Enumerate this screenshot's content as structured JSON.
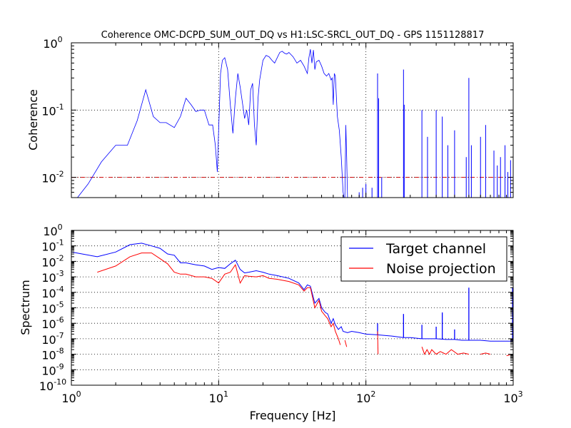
{
  "chart_data": [
    {
      "type": "line",
      "title": "Coherence OMC-DCPD_SUM_OUT_DQ vs H1:LSC-SRCL_OUT_DQ - GPS 1151128817",
      "xlabel": "",
      "ylabel": "Coherence",
      "xscale": "log",
      "yscale": "log",
      "xlim": [
        1,
        1000
      ],
      "ylim": [
        0.005,
        1
      ],
      "grid": true,
      "threshold": {
        "y": 0.01,
        "color": "#cc0000"
      },
      "yticks": [
        {
          "value": 0.01,
          "base": "10",
          "exp": "-2"
        },
        {
          "value": 0.1,
          "base": "10",
          "exp": "-1"
        },
        {
          "value": 1,
          "base": "10",
          "exp": "0"
        }
      ],
      "series": [
        {
          "color": "#0000ff",
          "x": [
            1.1,
            1.3,
            1.6,
            2.0,
            2.4,
            2.8,
            3.2,
            3.6,
            4.0,
            4.4,
            5.0,
            5.5,
            6.0,
            6.5,
            7.0,
            7.5,
            8.0,
            8.6,
            9.1,
            9.5,
            9.8,
            10.0,
            10.3,
            10.6,
            11.0,
            11.5,
            12.0,
            12.5,
            13.0,
            13.5,
            14.0,
            14.5,
            15.0,
            15.5,
            16.0,
            16.5,
            17.0,
            17.5,
            18.0,
            18.5,
            19.0,
            20.0,
            21.0,
            22.0,
            23.0,
            24.0,
            25.0,
            26.0,
            27.0,
            28.0,
            29.0,
            30.0,
            32.0,
            34.0,
            36.0,
            38.0,
            40.0,
            41.0,
            42.0,
            43.0,
            44.0,
            45.0,
            46.0,
            48.0,
            50.0,
            52.0,
            54.0,
            56.0,
            58.0,
            59.0,
            60.0,
            61.0,
            62.0,
            64.0,
            66.0,
            68.0,
            70.0,
            71.0,
            72.0,
            73.0,
            74.0,
            75.0
          ],
          "y": [
            0.005,
            0.008,
            0.017,
            0.03,
            0.03,
            0.07,
            0.2,
            0.08,
            0.065,
            0.065,
            0.055,
            0.08,
            0.15,
            0.12,
            0.095,
            0.1,
            0.1,
            0.06,
            0.06,
            0.03,
            0.012,
            0.05,
            0.35,
            0.55,
            0.6,
            0.4,
            0.12,
            0.045,
            0.15,
            0.35,
            0.22,
            0.13,
            0.075,
            0.1,
            0.06,
            0.2,
            0.25,
            0.06,
            0.03,
            0.15,
            0.28,
            0.55,
            0.65,
            0.62,
            0.55,
            0.5,
            0.6,
            0.72,
            0.75,
            0.7,
            0.68,
            0.72,
            0.62,
            0.5,
            0.55,
            0.45,
            0.35,
            0.6,
            0.8,
            0.5,
            0.78,
            0.4,
            0.52,
            0.55,
            0.45,
            0.35,
            0.32,
            0.35,
            0.28,
            0.3,
            0.12,
            0.35,
            0.32,
            0.08,
            0.05,
            0.02,
            0.006,
            0.005,
            0.005,
            0.06,
            0.02,
            0.005
          ]
        }
      ],
      "spikes": [
        {
          "x": 90,
          "y": 0.006
        },
        {
          "x": 95,
          "y": 0.007
        },
        {
          "x": 100,
          "y": 0.008
        },
        {
          "x": 110,
          "y": 0.007
        },
        {
          "x": 120,
          "y": 0.35
        },
        {
          "x": 122,
          "y": 0.15
        },
        {
          "x": 128,
          "y": 0.01
        },
        {
          "x": 180,
          "y": 0.4
        },
        {
          "x": 182,
          "y": 0.12
        },
        {
          "x": 240,
          "y": 0.1
        },
        {
          "x": 262,
          "y": 0.04
        },
        {
          "x": 300,
          "y": 0.1
        },
        {
          "x": 330,
          "y": 0.08
        },
        {
          "x": 360,
          "y": 0.03
        },
        {
          "x": 400,
          "y": 0.05
        },
        {
          "x": 480,
          "y": 0.02
        },
        {
          "x": 500,
          "y": 0.3
        },
        {
          "x": 520,
          "y": 0.03
        },
        {
          "x": 600,
          "y": 0.04
        },
        {
          "x": 650,
          "y": 0.06
        },
        {
          "x": 740,
          "y": 0.025
        },
        {
          "x": 780,
          "y": 0.015
        },
        {
          "x": 820,
          "y": 0.02
        },
        {
          "x": 880,
          "y": 0.03
        },
        {
          "x": 920,
          "y": 0.012
        },
        {
          "x": 960,
          "y": 0.018
        }
      ]
    },
    {
      "type": "line",
      "title": "",
      "xlabel": "Frequency [Hz]",
      "ylabel": "Spectrum",
      "xscale": "log",
      "yscale": "log",
      "xlim": [
        1,
        1000
      ],
      "ylim": [
        1e-10,
        1
      ],
      "grid": true,
      "legend": "top-right",
      "xticks": [
        {
          "value": 1,
          "base": "10",
          "exp": "0"
        },
        {
          "value": 10,
          "base": "10",
          "exp": "1"
        },
        {
          "value": 100,
          "base": "10",
          "exp": "2"
        },
        {
          "value": 1000,
          "base": "10",
          "exp": "3"
        }
      ],
      "yticks": [
        {
          "value": 1e-10,
          "base": "10",
          "exp": "-10"
        },
        {
          "value": 1e-09,
          "base": "10",
          "exp": "-9"
        },
        {
          "value": 1e-08,
          "base": "10",
          "exp": "-8"
        },
        {
          "value": 1e-07,
          "base": "10",
          "exp": "-7"
        },
        {
          "value": 1e-06,
          "base": "10",
          "exp": "-6"
        },
        {
          "value": 1e-05,
          "base": "10",
          "exp": "-5"
        },
        {
          "value": 0.0001,
          "base": "10",
          "exp": "-4"
        },
        {
          "value": 0.001,
          "base": "10",
          "exp": "-3"
        },
        {
          "value": 0.01,
          "base": "10",
          "exp": "-2"
        },
        {
          "value": 0.1,
          "base": "10",
          "exp": "-1"
        },
        {
          "value": 1,
          "base": "10",
          "exp": "0"
        }
      ],
      "series": [
        {
          "name": "Target channel",
          "color": "#0000ff",
          "x": [
            1.0,
            1.5,
            2.0,
            2.5,
            3.0,
            3.5,
            4.0,
            4.5,
            5.0,
            5.5,
            6.0,
            7.0,
            8.0,
            9.0,
            10.0,
            11.0,
            12.0,
            13.0,
            14.0,
            15.0,
            16.0,
            18.0,
            20.0,
            22.0,
            25.0,
            30.0,
            35.0,
            38.0,
            40.0,
            42.0,
            45.0,
            48.0,
            50.0,
            53.0,
            55.0,
            58.0,
            60.0,
            62.0,
            65.0,
            68.0,
            70.0,
            75.0,
            80.0,
            90.0,
            100.0,
            120.0,
            150.0,
            180.0,
            200.0,
            240.0,
            300.0,
            350.0,
            400.0,
            450.0,
            490.0,
            510.0,
            600.0,
            700.0,
            800.0,
            900.0,
            990.0
          ],
          "y": [
            0.04,
            0.02,
            0.04,
            0.12,
            0.15,
            0.1,
            0.07,
            0.03,
            0.025,
            0.008,
            0.008,
            0.006,
            0.005,
            0.003,
            0.004,
            0.0035,
            0.007,
            0.012,
            0.003,
            0.0018,
            0.002,
            0.0025,
            0.002,
            0.0015,
            0.0012,
            0.0008,
            0.0004,
            0.00015,
            0.0003,
            0.00025,
            2e-05,
            4e-05,
            1e-05,
            5e-06,
            4e-06,
            1e-06,
            2e-06,
            8e-07,
            4e-07,
            6e-07,
            3e-07,
            2.5e-07,
            3e-07,
            2.5e-07,
            2e-07,
            1.8e-07,
            1.5e-07,
            1.2e-07,
            1.2e-07,
            1e-07,
            1e-07,
            9e-08,
            9e-08,
            8e-08,
            8e-08,
            8e-08,
            8e-08,
            7e-08,
            7e-08,
            7e-08,
            7e-08
          ]
        },
        {
          "name": "Noise projection",
          "color": "#ff0000",
          "x": [
            1.5,
            2.0,
            2.5,
            3.0,
            3.5,
            4.0,
            4.5,
            5.0,
            5.5,
            6.0,
            7.0,
            8.0,
            9.0,
            10.0,
            11.0,
            12.0,
            13.0,
            14.0,
            15.0,
            16.0,
            18.0,
            20.0,
            22.0,
            25.0,
            30.0,
            35.0,
            38.0,
            40.0,
            42.0,
            45.0,
            48.0,
            50.0,
            53.0,
            55.0,
            58.0,
            60.0,
            62.0,
            65.0,
            67.0
          ],
          "y": [
            0.002,
            0.005,
            0.02,
            0.035,
            0.035,
            0.015,
            0.007,
            0.002,
            0.0015,
            0.0015,
            0.001,
            0.001,
            0.0008,
            0.0004,
            0.0015,
            0.002,
            0.006,
            0.0004,
            0.0012,
            0.0011,
            0.001,
            0.0012,
            0.0008,
            0.0007,
            0.0005,
            0.0003,
            0.00012,
            0.0002,
            0.0002,
            1e-05,
            3e-05,
            6e-06,
            3e-06,
            2e-06,
            6e-07,
            1e-06,
            3e-07,
            1e-07,
            4e-08
          ]
        }
      ],
      "blue_spikes": [
        {
          "x": 120,
          "y": 1e-06
        },
        {
          "x": 180,
          "y": 4e-06
        },
        {
          "x": 240,
          "y": 8e-07
        },
        {
          "x": 300,
          "y": 6e-07
        },
        {
          "x": 330,
          "y": 5e-06
        },
        {
          "x": 400,
          "y": 4e-07
        },
        {
          "x": 500,
          "y": 0.0002
        },
        {
          "x": 990,
          "y": 0.0002
        }
      ],
      "red_fragments": [
        {
          "x": [
            72,
            74
          ],
          "y": [
            8e-08,
            3e-08
          ]
        },
        {
          "x": [
            120,
            121
          ],
          "y": [
            3e-07,
            1e-08
          ]
        },
        {
          "x": [
            240,
            250,
            260,
            270,
            280,
            300,
            320,
            350,
            380,
            420,
            460,
            500
          ],
          "y": [
            3e-08,
            1e-08,
            2e-08,
            1e-08,
            2e-08,
            1e-08,
            1.5e-08,
            1e-08,
            2e-08,
            1e-08,
            1.2e-08,
            1e-08
          ]
        },
        {
          "x": [
            600,
            650,
            700
          ],
          "y": [
            1e-08,
            1.2e-08,
            1e-08
          ]
        },
        {
          "x": [
            900,
            950
          ],
          "y": [
            8e-09,
            9e-09
          ]
        }
      ]
    }
  ]
}
